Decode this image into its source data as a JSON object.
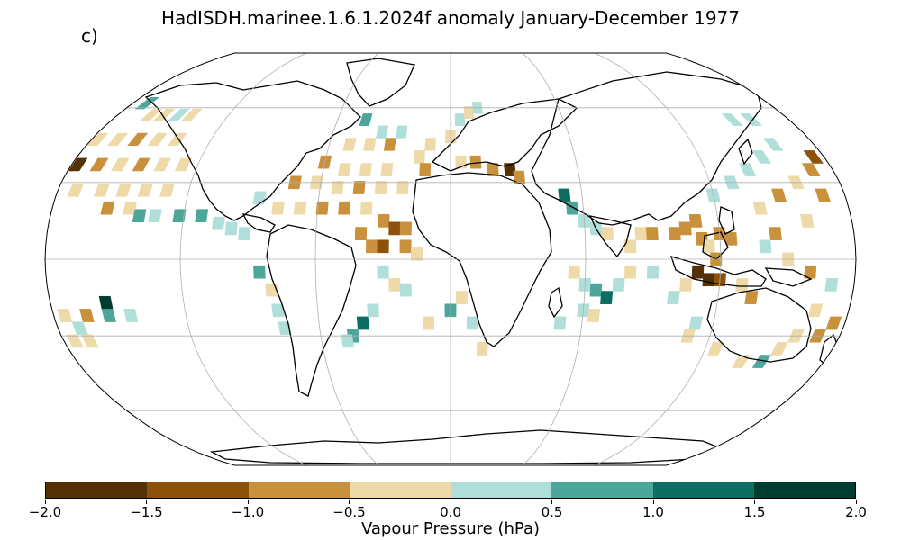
{
  "title": "HadISDH.marinee.1.6.1.2024f anomaly January-December 1977",
  "panel_label": "c)",
  "colorbar": {
    "label": "Vapour Pressure (hPa)",
    "ticks": [
      "−2.0",
      "−1.5",
      "−1.0",
      "−0.5",
      "0.0",
      "0.5",
      "1.0",
      "1.5",
      "2.0"
    ],
    "range": [
      -2.0,
      2.0
    ],
    "colors": [
      "#543005",
      "#8c510a",
      "#c9913c",
      "#eed9a8",
      "#b0dfda",
      "#4ca79a",
      "#0d6f62",
      "#003c30"
    ]
  },
  "chart_data": {
    "type": "heatmap",
    "projection": "Robinson",
    "variable": "Vapour Pressure (hPa)",
    "period": "January-December 1977",
    "grid": true,
    "value_range": [
      -2.0,
      2.0
    ],
    "grid_cells": [
      {
        "lon": -172,
        "lat": 62,
        "v": 0.6
      },
      {
        "lon": -162,
        "lat": 57,
        "v": -0.3
      },
      {
        "lon": -155,
        "lat": 57,
        "v": -0.4
      },
      {
        "lon": -147,
        "lat": 57,
        "v": 0.4
      },
      {
        "lon": -140,
        "lat": 57,
        "v": -0.3
      },
      {
        "lon": -177,
        "lat": 47,
        "v": -0.3
      },
      {
        "lon": -167,
        "lat": 47,
        "v": -0.4
      },
      {
        "lon": -157,
        "lat": 47,
        "v": -0.6
      },
      {
        "lon": -147,
        "lat": 47,
        "v": -0.3
      },
      {
        "lon": -137,
        "lat": 47,
        "v": -0.3
      },
      {
        "lon": -177,
        "lat": 37,
        "v": -1.6
      },
      {
        "lon": -167,
        "lat": 37,
        "v": -0.8
      },
      {
        "lon": -157,
        "lat": 37,
        "v": -0.3
      },
      {
        "lon": -147,
        "lat": 37,
        "v": -0.6
      },
      {
        "lon": -137,
        "lat": 37,
        "v": -0.4
      },
      {
        "lon": -127,
        "lat": 37,
        "v": -0.3
      },
      {
        "lon": -172,
        "lat": 27,
        "v": -0.3
      },
      {
        "lon": -160,
        "lat": 27,
        "v": -0.3
      },
      {
        "lon": -150,
        "lat": 27,
        "v": -0.3
      },
      {
        "lon": -140,
        "lat": 27,
        "v": -0.3
      },
      {
        "lon": -130,
        "lat": 27,
        "v": -0.3
      },
      {
        "lon": -155,
        "lat": 20,
        "v": -0.6
      },
      {
        "lon": -145,
        "lat": 20,
        "v": -0.3
      },
      {
        "lon": -140,
        "lat": 17,
        "v": 0.6
      },
      {
        "lon": -133,
        "lat": 17,
        "v": 0.3
      },
      {
        "lon": -122,
        "lat": 17,
        "v": 0.6
      },
      {
        "lon": -112,
        "lat": 17,
        "v": 0.7
      },
      {
        "lon": -104,
        "lat": 14,
        "v": 0.3
      },
      {
        "lon": -98,
        "lat": 12,
        "v": 0.3
      },
      {
        "lon": -92,
        "lat": 10,
        "v": 0.3
      },
      {
        "lon": -155,
        "lat": -17,
        "v": 1.7
      },
      {
        "lon": -175,
        "lat": -22,
        "v": -0.3
      },
      {
        "lon": -165,
        "lat": -22,
        "v": -0.8
      },
      {
        "lon": -155,
        "lat": -22,
        "v": 0.6
      },
      {
        "lon": -145,
        "lat": -22,
        "v": 0.4
      },
      {
        "lon": -170,
        "lat": -27,
        "v": 0.3
      },
      {
        "lon": -175,
        "lat": -32,
        "v": -0.3
      },
      {
        "lon": -168,
        "lat": -32,
        "v": -0.3
      },
      {
        "lon": -85,
        "lat": -5,
        "v": 0.6
      },
      {
        "lon": -80,
        "lat": -12,
        "v": -0.3
      },
      {
        "lon": -78,
        "lat": -20,
        "v": 0.3
      },
      {
        "lon": -76,
        "lat": -27,
        "v": 0.3
      },
      {
        "lon": -45,
        "lat": 55,
        "v": 0.8
      },
      {
        "lon": -35,
        "lat": 50,
        "v": 0.3
      },
      {
        "lon": -25,
        "lat": 50,
        "v": 0.4
      },
      {
        "lon": -50,
        "lat": 45,
        "v": -0.3
      },
      {
        "lon": -40,
        "lat": 45,
        "v": -0.3
      },
      {
        "lon": -30,
        "lat": 45,
        "v": -0.6
      },
      {
        "lon": -60,
        "lat": 38,
        "v": -0.6
      },
      {
        "lon": -50,
        "lat": 35,
        "v": -0.3
      },
      {
        "lon": -40,
        "lat": 35,
        "v": -0.3
      },
      {
        "lon": -30,
        "lat": 35,
        "v": -0.3
      },
      {
        "lon": -72,
        "lat": 30,
        "v": -0.6
      },
      {
        "lon": -62,
        "lat": 30,
        "v": -0.4
      },
      {
        "lon": -52,
        "lat": 28,
        "v": -0.3
      },
      {
        "lon": -42,
        "lat": 28,
        "v": -0.6
      },
      {
        "lon": -32,
        "lat": 28,
        "v": -0.3
      },
      {
        "lon": -22,
        "lat": 28,
        "v": -0.3
      },
      {
        "lon": -87,
        "lat": 24,
        "v": 0.4
      },
      {
        "lon": -78,
        "lat": 20,
        "v": -0.3
      },
      {
        "lon": -68,
        "lat": 20,
        "v": -0.3
      },
      {
        "lon": -58,
        "lat": 20,
        "v": -0.6
      },
      {
        "lon": -48,
        "lat": 20,
        "v": -0.6
      },
      {
        "lon": -38,
        "lat": 20,
        "v": -0.3
      },
      {
        "lon": -30,
        "lat": 15,
        "v": -0.6
      },
      {
        "lon": -25,
        "lat": 12,
        "v": -1.2
      },
      {
        "lon": -20,
        "lat": 12,
        "v": -0.6
      },
      {
        "lon": -40,
        "lat": 10,
        "v": -0.6
      },
      {
        "lon": -35,
        "lat": 5,
        "v": -0.6
      },
      {
        "lon": -30,
        "lat": 5,
        "v": -1.2
      },
      {
        "lon": -20,
        "lat": 5,
        "v": -0.6
      },
      {
        "lon": -15,
        "lat": 2,
        "v": -0.3
      },
      {
        "lon": -30,
        "lat": -5,
        "v": 0.4
      },
      {
        "lon": -25,
        "lat": -10,
        "v": -0.3
      },
      {
        "lon": -20,
        "lat": -12,
        "v": 0.3
      },
      {
        "lon": -35,
        "lat": -20,
        "v": 0.3
      },
      {
        "lon": -40,
        "lat": -25,
        "v": 1.2
      },
      {
        "lon": -45,
        "lat": -30,
        "v": 0.7
      },
      {
        "lon": -48,
        "lat": -32,
        "v": 0.3
      },
      {
        "lon": -10,
        "lat": -25,
        "v": -0.4
      },
      {
        "lon": 0,
        "lat": -20,
        "v": 0.6
      },
      {
        "lon": 5,
        "lat": -15,
        "v": -0.3
      },
      {
        "lon": 10,
        "lat": -25,
        "v": 0.3
      },
      {
        "lon": 15,
        "lat": -35,
        "v": -0.3
      },
      {
        "lon": 5,
        "lat": 55,
        "v": 0.4
      },
      {
        "lon": 10,
        "lat": 58,
        "v": -0.3
      },
      {
        "lon": 15,
        "lat": 60,
        "v": 0.3
      },
      {
        "lon": 0,
        "lat": 48,
        "v": -0.3
      },
      {
        "lon": -10,
        "lat": 45,
        "v": -0.3
      },
      {
        "lon": -15,
        "lat": 40,
        "v": -0.3
      },
      {
        "lon": -12,
        "lat": 35,
        "v": -0.6
      },
      {
        "lon": 5,
        "lat": 38,
        "v": -0.3
      },
      {
        "lon": 12,
        "lat": 38,
        "v": -0.6
      },
      {
        "lon": 20,
        "lat": 35,
        "v": -0.6
      },
      {
        "lon": 28,
        "lat": 35,
        "v": -1.6
      },
      {
        "lon": 32,
        "lat": 32,
        "v": -0.8
      },
      {
        "lon": 52,
        "lat": 25,
        "v": 1.2
      },
      {
        "lon": 55,
        "lat": 20,
        "v": 0.6
      },
      {
        "lon": 60,
        "lat": 15,
        "v": 0.4
      },
      {
        "lon": 65,
        "lat": 12,
        "v": 0.3
      },
      {
        "lon": 70,
        "lat": 10,
        "v": -0.3
      },
      {
        "lon": 80,
        "lat": 5,
        "v": -0.3
      },
      {
        "lon": 85,
        "lat": 10,
        "v": -0.3
      },
      {
        "lon": 90,
        "lat": 10,
        "v": -0.6
      },
      {
        "lon": 55,
        "lat": -5,
        "v": -0.3
      },
      {
        "lon": 60,
        "lat": -10,
        "v": 0.3
      },
      {
        "lon": 65,
        "lat": -12,
        "v": 0.6
      },
      {
        "lon": 70,
        "lat": -15,
        "v": 1.2
      },
      {
        "lon": 75,
        "lat": -10,
        "v": 0.4
      },
      {
        "lon": 60,
        "lat": -20,
        "v": 0.3
      },
      {
        "lon": 65,
        "lat": -22,
        "v": -0.3
      },
      {
        "lon": 50,
        "lat": -25,
        "v": 0.3
      },
      {
        "lon": 80,
        "lat": -5,
        "v": -0.3
      },
      {
        "lon": 90,
        "lat": -5,
        "v": 0.3
      },
      {
        "lon": 100,
        "lat": 10,
        "v": -0.6
      },
      {
        "lon": 105,
        "lat": 12,
        "v": -0.6
      },
      {
        "lon": 110,
        "lat": 15,
        "v": -0.6
      },
      {
        "lon": 112,
        "lat": 8,
        "v": -0.6
      },
      {
        "lon": 115,
        "lat": 5,
        "v": -0.3
      },
      {
        "lon": 120,
        "lat": 10,
        "v": -0.6
      },
      {
        "lon": 125,
        "lat": 8,
        "v": -0.6
      },
      {
        "lon": 118,
        "lat": 0,
        "v": -0.6
      },
      {
        "lon": 110,
        "lat": -5,
        "v": -1.6
      },
      {
        "lon": 115,
        "lat": -8,
        "v": -1.6
      },
      {
        "lon": 120,
        "lat": -8,
        "v": -1.2
      },
      {
        "lon": 105,
        "lat": -10,
        "v": -0.3
      },
      {
        "lon": 100,
        "lat": -15,
        "v": 0.3
      },
      {
        "lon": 120,
        "lat": 25,
        "v": 0.4
      },
      {
        "lon": 130,
        "lat": 30,
        "v": 0.3
      },
      {
        "lon": 140,
        "lat": 35,
        "v": 0.4
      },
      {
        "lon": 150,
        "lat": 40,
        "v": 0.3
      },
      {
        "lon": 160,
        "lat": 45,
        "v": 0.3
      },
      {
        "lon": 150,
        "lat": 55,
        "v": 0.4
      },
      {
        "lon": 160,
        "lat": 55,
        "v": 0.3
      },
      {
        "lon": 140,
        "lat": 20,
        "v": -0.3
      },
      {
        "lon": 150,
        "lat": 25,
        "v": -0.6
      },
      {
        "lon": 160,
        "lat": 30,
        "v": -0.3
      },
      {
        "lon": 170,
        "lat": 35,
        "v": -0.6
      },
      {
        "lon": 175,
        "lat": 40,
        "v": -1.2
      },
      {
        "lon": 170,
        "lat": 25,
        "v": -0.6
      },
      {
        "lon": 160,
        "lat": 15,
        "v": -0.3
      },
      {
        "lon": 145,
        "lat": 10,
        "v": -0.6
      },
      {
        "lon": 140,
        "lat": 5,
        "v": 0.3
      },
      {
        "lon": 150,
        "lat": 0,
        "v": -0.3
      },
      {
        "lon": 160,
        "lat": -5,
        "v": -0.6
      },
      {
        "lon": 170,
        "lat": -10,
        "v": 0.4
      },
      {
        "lon": 165,
        "lat": -20,
        "v": -0.3
      },
      {
        "lon": 175,
        "lat": -25,
        "v": -0.6
      },
      {
        "lon": 170,
        "lat": -30,
        "v": -0.6
      },
      {
        "lon": 160,
        "lat": -30,
        "v": -0.3
      },
      {
        "lon": 155,
        "lat": -35,
        "v": -0.3
      },
      {
        "lon": 150,
        "lat": -40,
        "v": 0.6
      },
      {
        "lon": 140,
        "lat": -40,
        "v": -0.3
      },
      {
        "lon": 125,
        "lat": -35,
        "v": -0.3
      },
      {
        "lon": 112,
        "lat": -25,
        "v": 0.3
      },
      {
        "lon": 110,
        "lat": -30,
        "v": -0.3
      },
      {
        "lon": 135,
        "lat": -15,
        "v": -0.6
      },
      {
        "lon": 130,
        "lat": -10,
        "v": -0.3
      }
    ]
  }
}
